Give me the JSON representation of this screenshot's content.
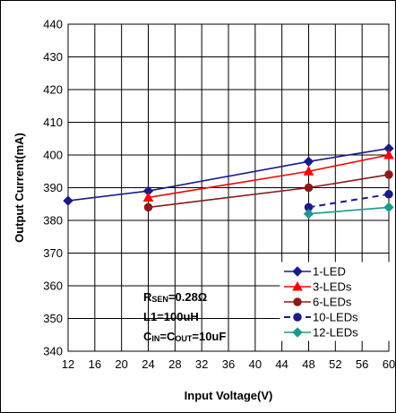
{
  "chart_data": {
    "type": "line",
    "xlabel": "Input Voltage(V)",
    "ylabel": "Output Current(mA)",
    "xlim": [
      12,
      60
    ],
    "ylim": [
      340,
      440
    ],
    "xticks": [
      "12",
      "16",
      "20",
      "24",
      "28",
      "32",
      "36",
      "40",
      "44",
      "48",
      "52",
      "56",
      "60"
    ],
    "yticks": [
      "340",
      "350",
      "360",
      "370",
      "380",
      "390",
      "400",
      "410",
      "420",
      "430",
      "440"
    ],
    "grid": true,
    "legend_position": "bottom-right",
    "annotations": [
      {
        "main": "R",
        "sub": "SEN",
        "rest": "=0.28Ω"
      },
      {
        "text": "L1=100uH"
      },
      {
        "c1": "C",
        "sub1": "IN",
        "mid": "=C",
        "sub2": "OUT",
        "rest": "=10uF"
      }
    ],
    "series": [
      {
        "name": "1-LED",
        "color": "#1a1a8c",
        "marker": "diamond",
        "dash": false,
        "x": [
          12,
          24,
          48,
          60
        ],
        "y": [
          386,
          389,
          398,
          402
        ]
      },
      {
        "name": "3-LEDs",
        "color": "#ff0000",
        "marker": "triangle",
        "dash": false,
        "x": [
          24,
          48,
          60
        ],
        "y": [
          387,
          395,
          400
        ]
      },
      {
        "name": "6-LEDs",
        "color": "#8b1a1a",
        "marker": "circle",
        "dash": false,
        "x": [
          24,
          48,
          60
        ],
        "y": [
          384,
          390,
          394
        ]
      },
      {
        "name": "10-LEDs",
        "color": "#1a1a8c",
        "marker": "circle",
        "dash": true,
        "x": [
          48,
          60
        ],
        "y": [
          384,
          388
        ]
      },
      {
        "name": "12-LEDs",
        "color": "#1a9a8a",
        "marker": "diamond",
        "dash": false,
        "x": [
          48,
          60
        ],
        "y": [
          382,
          384
        ]
      }
    ]
  }
}
